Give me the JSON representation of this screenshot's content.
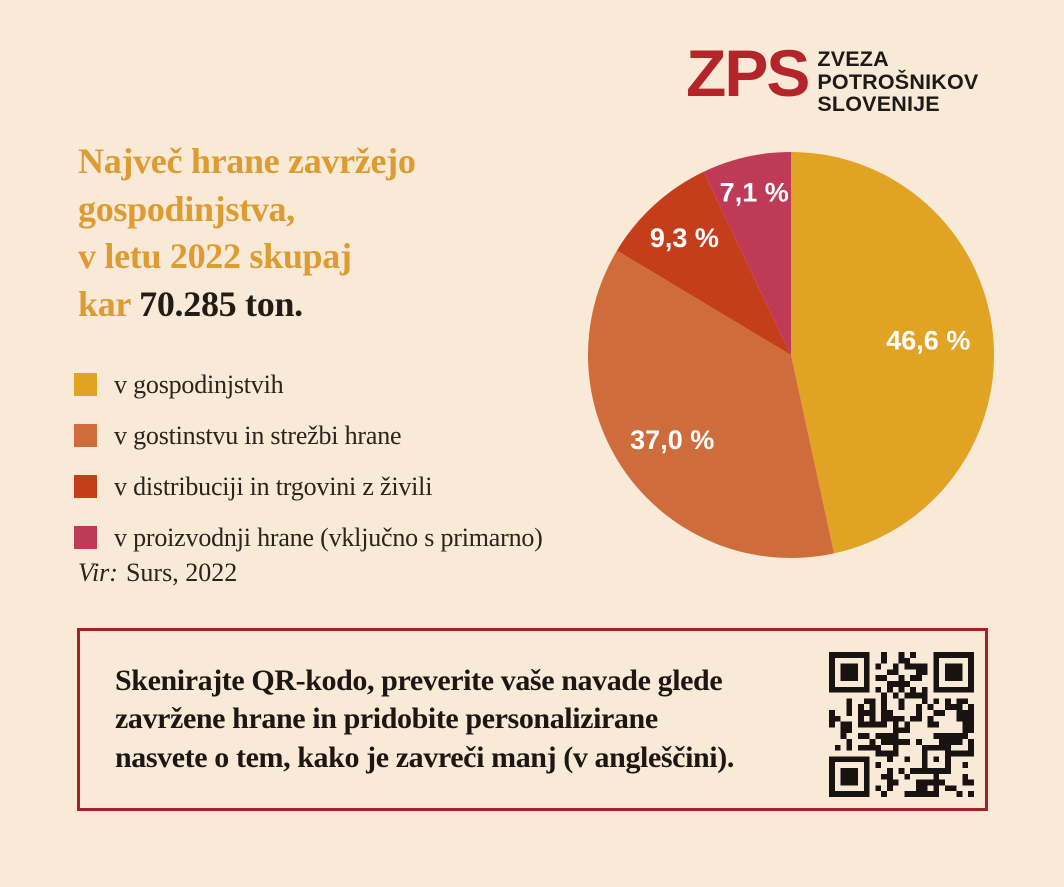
{
  "canvas": {
    "background": "#f8ead6"
  },
  "logo": {
    "abbr": "ZPS",
    "abbr_color": "#b4242b",
    "name_lines": [
      "ZVEZA",
      "POTROŠNIKOV",
      "SLOVENIJE"
    ]
  },
  "headline": {
    "accent_color": "#dd9b31",
    "line1": "Največ hrane zavržejo",
    "line2": "gospodinjstva,",
    "line3": "v letu 2022 skupaj",
    "line4_accent": "kar",
    "line4_emphasis": "70.285 ton."
  },
  "chart_data": {
    "type": "pie",
    "unit": "%",
    "start_angle_deg": 0,
    "direction": "clockwise",
    "categories": [
      "v gospodinjstvih",
      "v gostinstvu in strežbi hrane",
      "v distribuciji in trgovini z živili",
      "v proizvodnji hrane (vključno s primarno)"
    ],
    "values": [
      46.6,
      37.0,
      9.3,
      7.1
    ],
    "display_labels": [
      "46,6 %",
      "37,0 %",
      "9,3 %",
      "7,1 %"
    ],
    "colors": [
      "#e1a324",
      "#cf6c3c",
      "#c43e1b",
      "#bf3a56"
    ],
    "label_color": "#ffffff",
    "legend_position": "left"
  },
  "source": {
    "label": "Vir:",
    "value": "Surs, 2022"
  },
  "cta": {
    "border_color": "#a81f25",
    "lines": [
      "Skenirajte QR-kodo, preverite vaše navade glede",
      "zavržene hrane in pridobite personalizirane",
      "nasvete o tem, kako je zavreči manj (v angleščini)."
    ]
  },
  "qr": {
    "modules": 25,
    "color": "#181310"
  }
}
